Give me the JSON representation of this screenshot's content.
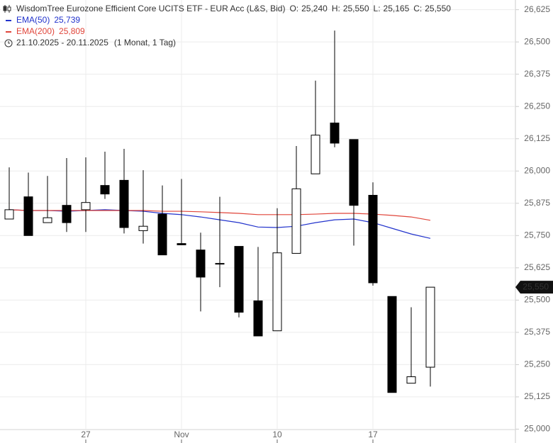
{
  "chart_data": {
    "type": "candlestick",
    "title": "WisdomTree Eurozone Efficient Core UCITS ETF - EUR Acc (L&S, Bid)",
    "quote": [
      {
        "label": "O:",
        "value": "25,240"
      },
      {
        "label": "H:",
        "value": "25,550"
      },
      {
        "label": "L:",
        "value": "25,165"
      },
      {
        "label": "C:",
        "value": "25,550"
      }
    ],
    "date_range": "21.10.2025 - 20.11.2025",
    "period": "(1 Monat, 1 Tag)",
    "last_label": "25,550",
    "categories": [
      null,
      null,
      null,
      null,
      "27",
      null,
      null,
      null,
      null,
      "Nov",
      null,
      null,
      null,
      null,
      "10",
      null,
      null,
      null,
      null,
      "17",
      null,
      null,
      null
    ],
    "open": [
      25.814,
      25.9,
      25.8,
      25.867,
      25.85,
      25.944,
      25.964,
      25.769,
      25.833,
      25.719,
      25.694,
      25.642,
      25.708,
      25.497,
      25.381,
      25.681,
      25.989,
      26.186,
      26.122,
      25.906,
      25.514,
      25.178,
      25.24
    ],
    "high": [
      26.014,
      25.994,
      25.981,
      26.05,
      26.053,
      26.075,
      26.086,
      26.003,
      25.944,
      25.969,
      25.761,
      25.9,
      25.708,
      25.706,
      25.856,
      26.097,
      26.35,
      26.544,
      26.122,
      25.956,
      25.514,
      25.472,
      25.55
    ],
    "low": [
      25.814,
      25.75,
      25.8,
      25.764,
      25.764,
      25.892,
      25.758,
      25.719,
      25.675,
      25.714,
      25.456,
      25.55,
      25.433,
      25.361,
      25.381,
      25.681,
      25.989,
      26.092,
      25.711,
      25.556,
      25.142,
      25.178,
      25.165
    ],
    "close": [
      25.85,
      25.75,
      25.819,
      25.8,
      25.878,
      25.911,
      25.781,
      25.786,
      25.675,
      25.714,
      25.589,
      25.642,
      25.453,
      25.361,
      25.683,
      25.931,
      26.139,
      26.108,
      25.867,
      25.567,
      25.142,
      25.203,
      25.55
    ],
    "series": [
      {
        "name": "EMA(50)",
        "legend_value": "25,739",
        "color": "#2233cc",
        "values": [
          25.85,
          25.847,
          25.847,
          25.844,
          25.847,
          25.85,
          25.847,
          25.844,
          25.836,
          25.831,
          25.822,
          25.811,
          25.8,
          25.783,
          25.781,
          25.786,
          25.8,
          25.811,
          25.814,
          25.8,
          25.778,
          25.756,
          25.739
        ]
      },
      {
        "name": "EMA(200)",
        "legend_value": "25,809",
        "color": "#e0453a",
        "values": [
          25.85,
          25.847,
          25.847,
          25.847,
          25.847,
          25.847,
          25.847,
          25.847,
          25.844,
          25.844,
          25.842,
          25.839,
          25.836,
          25.831,
          25.831,
          25.831,
          25.833,
          25.836,
          25.836,
          25.833,
          25.828,
          25.822,
          25.809
        ]
      }
    ],
    "ylim": [
      24.9875,
      26.6625
    ],
    "yticks": [
      {
        "value": 25.0,
        "label": "25,000"
      },
      {
        "value": 25.125,
        "label": "25,125"
      },
      {
        "value": 25.25,
        "label": "25,250"
      },
      {
        "value": 25.375,
        "label": "25,375"
      },
      {
        "value": 25.5,
        "label": "25,500"
      },
      {
        "value": 25.625,
        "label": "25,625"
      },
      {
        "value": 25.75,
        "label": "25,750"
      },
      {
        "value": 25.875,
        "label": "25,875"
      },
      {
        "value": 26.0,
        "label": "26,000"
      },
      {
        "value": 26.125,
        "label": "26,125"
      },
      {
        "value": 26.25,
        "label": "26,250"
      },
      {
        "value": 26.375,
        "label": "26,375"
      },
      {
        "value": 26.5,
        "label": "26,500"
      },
      {
        "value": 26.625,
        "label": "26,625"
      }
    ],
    "grid": true
  }
}
